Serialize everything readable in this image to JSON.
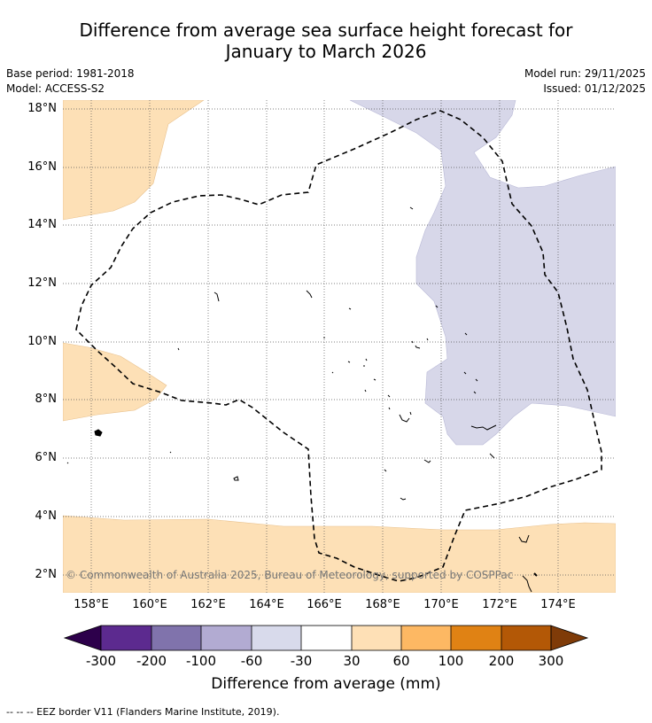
{
  "title": {
    "line1": "Difference from average sea surface height forecast for",
    "line2": "January to March 2026"
  },
  "meta": {
    "base_period": "Base period: 1981-2018",
    "model": "Model: ACCESS-S2",
    "model_run": "Model run: 29/11/2025",
    "issued": "Issued: 01/12/2025"
  },
  "map": {
    "latitude_labels": [
      "18°N",
      "16°N",
      "14°N",
      "12°N",
      "10°N",
      "8°N",
      "6°N",
      "4°N",
      "2°N"
    ],
    "longitude_labels": [
      "158°E",
      "160°E",
      "162°E",
      "164°E",
      "166°E",
      "168°E",
      "170°E",
      "172°E",
      "174°E"
    ],
    "latitude_range": [
      1.4,
      18.2
    ],
    "longitude_range": [
      157.0,
      176.0
    ],
    "copyright": "© Commonwealth of Australia 2025, Bureau of Meteorology, supported by COSPPac",
    "colors": {
      "positive_30_60": "#fde0b6",
      "negative_30_60": "#d7d7e9",
      "land": "#000000",
      "eez": "#000000",
      "grid": "#555555"
    }
  },
  "colorbar": {
    "ticks": [
      "-300",
      "-200",
      "-100",
      "-60",
      "-30",
      "30",
      "60",
      "100",
      "200",
      "300"
    ],
    "colors": [
      "#2d004b",
      "#5c2a8f",
      "#8073ac",
      "#b2abd2",
      "#d8daeb",
      "#ffffff",
      "#fee0b6",
      "#fdb863",
      "#e08214",
      "#b35806",
      "#7f3b08"
    ],
    "label": "Difference from average (mm)"
  },
  "footer": "--  --  -- EEZ border V11 (Flanders Marine Institute, 2019)."
}
